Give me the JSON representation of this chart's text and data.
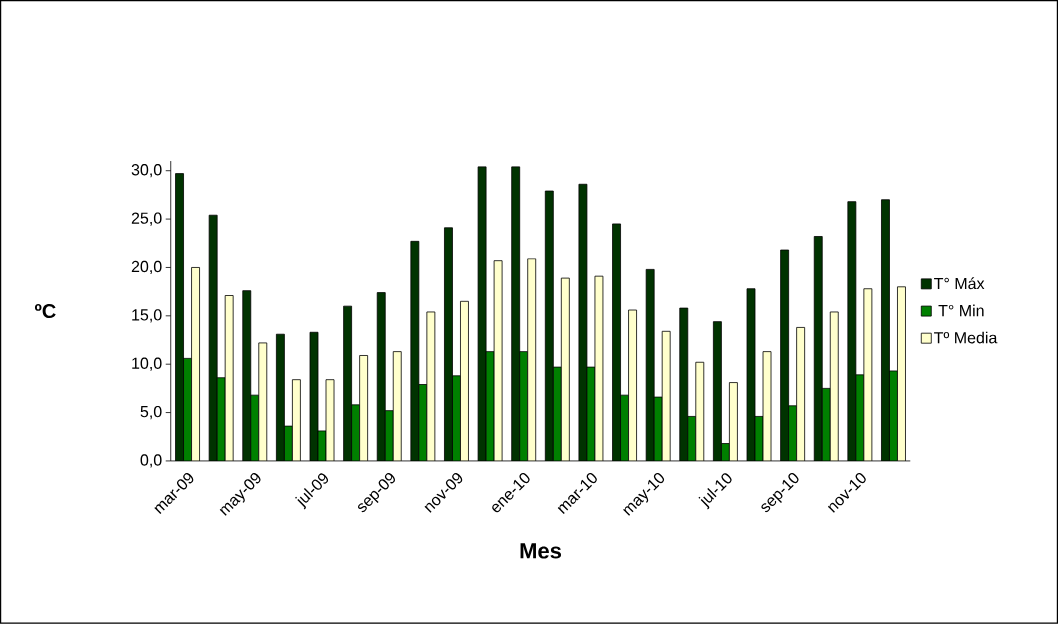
{
  "chart_data": {
    "type": "bar",
    "xlabel": "Mes",
    "ylabel": "ºC",
    "categories": [
      "mar-09",
      null,
      "may-09",
      null,
      "jul-09",
      null,
      "sep-09",
      null,
      "nov-09",
      null,
      "ene-10",
      null,
      "mar-10",
      null,
      "may-10",
      null,
      "jul-10",
      null,
      "sep-10",
      null,
      "nov-10",
      null
    ],
    "series": [
      {
        "name": "T° Máx",
        "color": "#003300",
        "values": [
          29.7,
          25.4,
          17.6,
          13.1,
          13.3,
          16.0,
          17.4,
          22.7,
          24.1,
          30.4,
          30.4,
          27.9,
          28.6,
          24.5,
          19.8,
          15.8,
          14.4,
          17.8,
          21.8,
          23.2,
          26.8,
          27.0
        ]
      },
      {
        "name": " T° Min",
        "color": "#008000",
        "values": [
          10.6,
          8.6,
          6.8,
          3.6,
          3.1,
          5.8,
          5.2,
          7.9,
          8.8,
          11.3,
          11.3,
          9.7,
          9.7,
          6.8,
          6.6,
          4.6,
          1.8,
          4.6,
          5.7,
          7.5,
          8.9,
          9.3
        ]
      },
      {
        "name": "Tº Media",
        "color": "#ffffcc",
        "values": [
          20.0,
          17.1,
          12.2,
          8.4,
          8.4,
          10.9,
          11.3,
          15.4,
          16.5,
          20.7,
          20.9,
          18.9,
          19.1,
          15.6,
          13.4,
          10.2,
          8.1,
          11.3,
          13.8,
          15.4,
          17.8,
          18.0
        ]
      }
    ],
    "ylim": [
      0,
      31
    ],
    "yticks": [
      {
        "value": 0,
        "label": "0,0"
      },
      {
        "value": 5,
        "label": "5,0"
      },
      {
        "value": 10,
        "label": "10,0"
      },
      {
        "value": 15,
        "label": "15,0"
      },
      {
        "value": 20,
        "label": "20,0"
      },
      {
        "value": 25,
        "label": "25,0"
      },
      {
        "value": 30,
        "label": "30,0"
      }
    ],
    "grid": false,
    "legend": "right"
  }
}
